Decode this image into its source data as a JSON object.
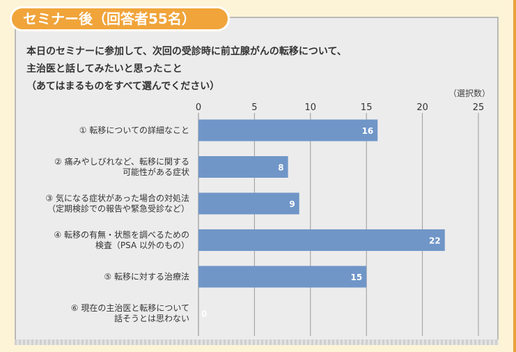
{
  "header": {
    "title": "セミナー後（回答者55名）"
  },
  "question": {
    "lines": [
      "本日のセミナーに参加して、次回の受診時に前立腺がんの転移について、",
      "主治医と話してみたいと思ったこと",
      "（あてはまるものをすべて選んでください）"
    ]
  },
  "colors": {
    "bar": "#7096c8",
    "accent": "#f0a43a",
    "panel": "#ececec"
  },
  "chart_data": {
    "type": "bar",
    "orientation": "horizontal",
    "unit_label": "（選択数）",
    "xlim": [
      0,
      25
    ],
    "ticks": [
      0,
      5,
      10,
      15,
      20,
      25
    ],
    "grid": true,
    "categories": [
      [
        "① 転移についての詳細なこと"
      ],
      [
        "② 痛みやしびれなど、転移に関する",
        "可能性がある症状"
      ],
      [
        "③ 気になる症状があった場合の対処法",
        "（定期検診での報告や緊急受診など）"
      ],
      [
        "④ 転移の有無・状態を調べるための",
        "検査（PSA 以外のもの）"
      ],
      [
        "⑤ 転移に対する治療法"
      ],
      [
        "⑥ 現在の主治医と転移について",
        "話そうとは思わない"
      ]
    ],
    "values": [
      16,
      8,
      9,
      22,
      15,
      0
    ]
  }
}
